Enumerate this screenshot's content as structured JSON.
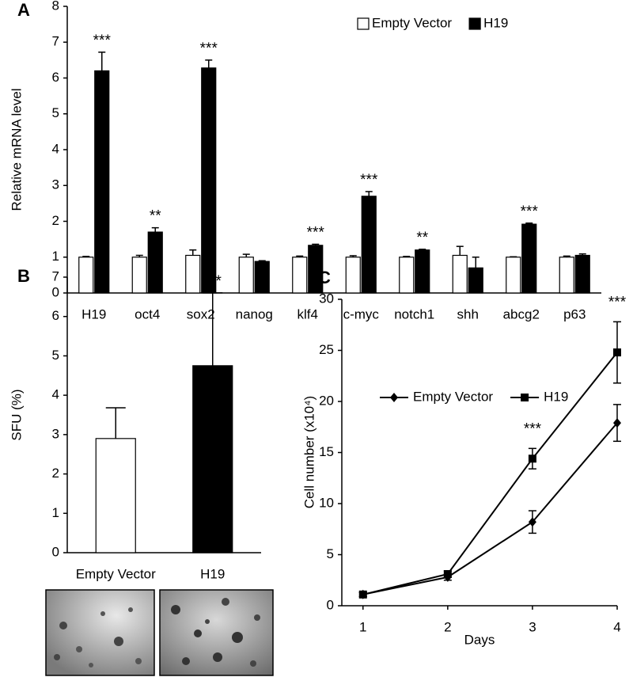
{
  "chart_data": [
    {
      "type": "bar",
      "panel_label": "A",
      "y_label": "Relative mRNA level",
      "categories": [
        "H19",
        "oct4",
        "sox2",
        "nanog",
        "klf4",
        "c-myc",
        "notch1",
        "shh",
        "abcg2",
        "p63"
      ],
      "series": [
        {
          "name": "Empty Vector",
          "color": "#ffffff",
          "values": [
            1.0,
            1.0,
            1.05,
            1.0,
            1.0,
            1.0,
            1.0,
            1.05,
            1.0,
            1.0
          ],
          "errors": [
            0.02,
            0.05,
            0.15,
            0.08,
            0.03,
            0.04,
            0.02,
            0.25,
            0.01,
            0.03
          ]
        },
        {
          "name": "H19",
          "color": "#000000",
          "values": [
            6.2,
            1.7,
            6.28,
            0.88,
            1.33,
            2.7,
            1.2,
            0.7,
            1.92,
            1.05
          ],
          "errors": [
            0.52,
            0.12,
            0.22,
            0.02,
            0.03,
            0.13,
            0.02,
            0.3,
            0.03,
            0.04
          ],
          "significance": [
            "***",
            "**",
            "***",
            null,
            "***",
            "***",
            "**",
            null,
            "***",
            null
          ]
        }
      ],
      "ylim": [
        0,
        8
      ],
      "yticks": [
        0,
        1,
        2,
        3,
        4,
        5,
        6,
        7,
        8
      ],
      "legend": "top-right"
    },
    {
      "type": "bar",
      "panel_label": "B",
      "y_label": "SFU (%)",
      "categories": [
        "Empty Vector",
        "H19"
      ],
      "values": [
        2.9,
        4.75
      ],
      "errors": [
        0.78,
        1.85
      ],
      "colors": [
        "#ffffff",
        "#000000"
      ],
      "significance": [
        null,
        "***"
      ],
      "ylim": [
        0,
        7
      ],
      "yticks": [
        0,
        1,
        2,
        3,
        4,
        5,
        6,
        7
      ]
    },
    {
      "type": "line",
      "panel_label": "C",
      "y_label": "Cell number (x10⁴)",
      "x_label": "Days",
      "x": [
        1,
        2,
        3,
        4
      ],
      "series": [
        {
          "name": "Empty Vector",
          "color": "#000000",
          "marker": "diamond",
          "values": [
            1.1,
            2.8,
            8.2,
            17.9
          ],
          "errors": [
            0.2,
            0.3,
            1.1,
            1.8
          ]
        },
        {
          "name": "H19",
          "color": "#000000",
          "marker": "square",
          "values": [
            1.1,
            3.1,
            14.4,
            24.8
          ],
          "errors": [
            0.2,
            0.3,
            1.0,
            3.0
          ]
        }
      ],
      "significance": [
        null,
        null,
        "***",
        "***"
      ],
      "xlim": [
        0.75,
        4
      ],
      "xticks": [
        1,
        2,
        3,
        4
      ],
      "ylim": [
        0,
        30
      ],
      "yticks": [
        0,
        5,
        10,
        15,
        20,
        25,
        30
      ],
      "legend": "top-left"
    }
  ]
}
